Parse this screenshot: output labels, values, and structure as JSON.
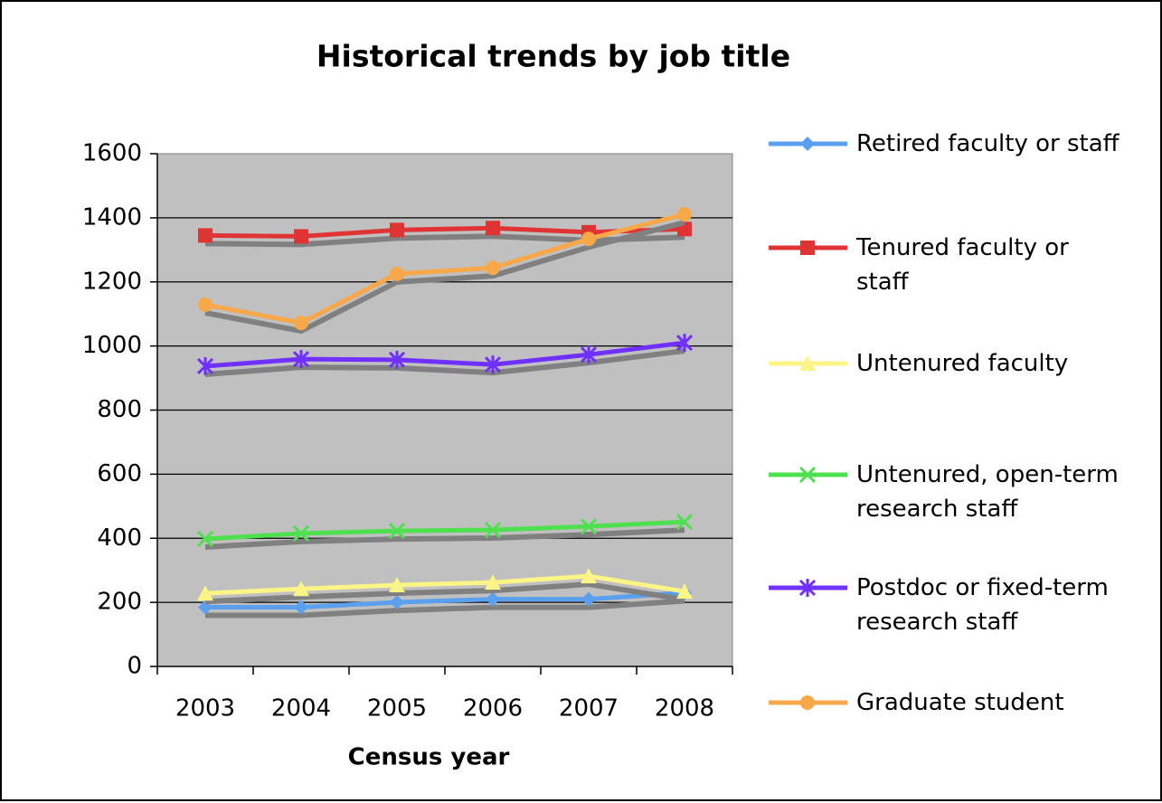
{
  "chart_data": {
    "type": "line",
    "title": "Historical trends by job title",
    "xlabel": "Census year",
    "categories": [
      "2003",
      "2004",
      "2005",
      "2006",
      "2007",
      "2008"
    ],
    "ylim": [
      0,
      1600
    ],
    "yticks": [
      0,
      200,
      400,
      600,
      800,
      1000,
      1200,
      1400,
      1600
    ],
    "grid": true,
    "legend": "right",
    "series": [
      {
        "name": "Retired faculty or staff",
        "color": "#5aa0ee",
        "marker": "diamond",
        "values": [
          185,
          185,
          200,
          210,
          210,
          230
        ]
      },
      {
        "name": "Tenured faculty or staff",
        "color": "#e03333",
        "marker": "square",
        "values": [
          1345,
          1342,
          1362,
          1368,
          1355,
          1365
        ]
      },
      {
        "name": "Untenured faculty",
        "color": "#fbf486",
        "marker": "triangle",
        "values": [
          228,
          242,
          254,
          262,
          282,
          234
        ]
      },
      {
        "name": "Untenured, open-term research staff",
        "color": "#4fe04f",
        "marker": "x",
        "values": [
          398,
          415,
          423,
          426,
          437,
          451
        ]
      },
      {
        "name": "Postdoc or fixed-term research staff",
        "color": "#7030ff",
        "marker": "star",
        "values": [
          937,
          959,
          957,
          942,
          973,
          1010
        ]
      },
      {
        "name": "Graduate student",
        "color": "#f8a848",
        "marker": "circle",
        "values": [
          1129,
          1072,
          1225,
          1244,
          1334,
          1411
        ]
      }
    ]
  }
}
